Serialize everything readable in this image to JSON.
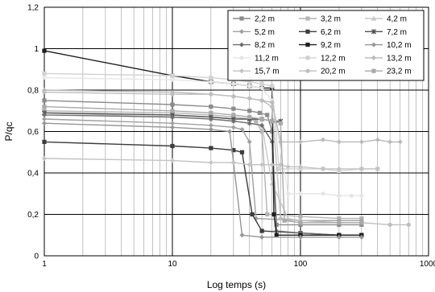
{
  "chart_data": {
    "type": "line",
    "xlabel": "Log temps (s)",
    "ylabel": "P/qc",
    "xscale": "log",
    "xlim": [
      1,
      1000
    ],
    "ylim": [
      0,
      1.2
    ],
    "x_ticks": [
      "1",
      "10",
      "100",
      "1000"
    ],
    "y_ticks": [
      "0",
      "0,2",
      "0,4",
      "0,6",
      "0,8",
      "1",
      "1,2"
    ],
    "y_tick_values": [
      0,
      0.2,
      0.4,
      0.6,
      0.8,
      1.0,
      1.2
    ],
    "grid": true,
    "legend_position": "top-right",
    "series": [
      {
        "name": "2,2 m",
        "color": "#8c8c8c",
        "marker": "square",
        "points": [
          [
            1,
            0.75
          ],
          [
            10,
            0.73
          ],
          [
            20,
            0.72
          ],
          [
            30,
            0.71
          ],
          [
            40,
            0.7
          ],
          [
            48,
            0.69
          ],
          [
            55,
            0.68
          ],
          [
            60,
            0.6
          ],
          [
            65,
            0.15
          ],
          [
            100,
            0.15
          ],
          [
            200,
            0.15
          ],
          [
            300,
            0.15
          ]
        ]
      },
      {
        "name": "3,2 m",
        "color": "#b4b4b4",
        "marker": "square",
        "points": [
          [
            1,
            0.7
          ],
          [
            10,
            0.69
          ],
          [
            20,
            0.68
          ],
          [
            30,
            0.67
          ],
          [
            40,
            0.66
          ],
          [
            45,
            0.65
          ],
          [
            50,
            0.6
          ],
          [
            55,
            0.2
          ],
          [
            100,
            0.19
          ],
          [
            200,
            0.18
          ],
          [
            300,
            0.18
          ]
        ]
      },
      {
        "name": "4,2 m",
        "color": "#c8c8c8",
        "marker": "triangle",
        "points": [
          [
            1,
            0.69
          ],
          [
            10,
            0.67
          ],
          [
            20,
            0.66
          ],
          [
            30,
            0.65
          ],
          [
            40,
            0.64
          ],
          [
            50,
            0.63
          ],
          [
            60,
            0.35
          ],
          [
            80,
            0.18
          ],
          [
            100,
            0.17
          ],
          [
            200,
            0.17
          ],
          [
            300,
            0.17
          ]
        ]
      },
      {
        "name": "5,2 m",
        "color": "#a0a0a0",
        "marker": "diamond",
        "points": [
          [
            1,
            0.66
          ],
          [
            10,
            0.64
          ],
          [
            20,
            0.63
          ],
          [
            30,
            0.62
          ],
          [
            35,
            0.61
          ],
          [
            40,
            0.55
          ],
          [
            45,
            0.18
          ],
          [
            100,
            0.17
          ],
          [
            200,
            0.17
          ],
          [
            300,
            0.17
          ]
        ]
      },
      {
        "name": "6,2 m",
        "color": "#3c3c3c",
        "marker": "square",
        "points": [
          [
            1,
            0.55
          ],
          [
            10,
            0.53
          ],
          [
            20,
            0.52
          ],
          [
            30,
            0.51
          ],
          [
            35,
            0.5
          ],
          [
            42,
            0.2
          ],
          [
            50,
            0.12
          ],
          [
            100,
            0.11
          ],
          [
            200,
            0.1
          ],
          [
            300,
            0.1
          ]
        ]
      },
      {
        "name": "7,2 m",
        "color": "#505050",
        "marker": "star",
        "points": [
          [
            1,
            0.69
          ],
          [
            10,
            0.68
          ],
          [
            20,
            0.67
          ],
          [
            30,
            0.66
          ],
          [
            40,
            0.66
          ],
          [
            50,
            0.66
          ],
          [
            60,
            0.65
          ],
          [
            70,
            0.65
          ]
        ]
      },
      {
        "name": "8,2 m",
        "color": "#6e6e6e",
        "marker": "diamond",
        "points": [
          [
            1,
            0.68
          ],
          [
            10,
            0.67
          ],
          [
            20,
            0.66
          ],
          [
            30,
            0.65
          ],
          [
            40,
            0.64
          ],
          [
            50,
            0.63
          ],
          [
            60,
            0.55
          ],
          [
            65,
            0.12
          ],
          [
            100,
            0.11
          ],
          [
            200,
            0.1
          ],
          [
            300,
            0.1
          ]
        ]
      },
      {
        "name": "9,2 m",
        "color": "#1e1e1e",
        "marker": "square",
        "points": [
          [
            1,
            0.99
          ],
          [
            10,
            0.87
          ],
          [
            20,
            0.84
          ],
          [
            30,
            0.83
          ],
          [
            40,
            0.82
          ],
          [
            50,
            0.81
          ],
          [
            60,
            0.81
          ],
          [
            62,
            0.2
          ],
          [
            65,
            0.1
          ],
          [
            100,
            0.1
          ],
          [
            200,
            0.1
          ],
          [
            300,
            0.1
          ]
        ]
      },
      {
        "name": "10,2 m",
        "color": "#969696",
        "marker": "diamond",
        "points": [
          [
            1,
            0.64
          ],
          [
            10,
            0.62
          ],
          [
            20,
            0.61
          ],
          [
            28,
            0.6
          ],
          [
            30,
            0.45
          ],
          [
            35,
            0.1
          ],
          [
            50,
            0.09
          ],
          [
            100,
            0.09
          ],
          [
            200,
            0.09
          ],
          [
            300,
            0.09
          ]
        ]
      },
      {
        "name": "11,2 m",
        "color": "#e6e6e6",
        "marker": "circle",
        "points": [
          [
            1,
            0.86
          ],
          [
            10,
            0.85
          ],
          [
            20,
            0.84
          ],
          [
            30,
            0.83
          ],
          [
            40,
            0.82
          ],
          [
            50,
            0.81
          ],
          [
            60,
            0.75
          ],
          [
            80,
            0.3
          ],
          [
            100,
            0.3
          ],
          [
            150,
            0.3
          ],
          [
            200,
            0.29
          ],
          [
            250,
            0.29
          ],
          [
            300,
            0.29
          ]
        ]
      },
      {
        "name": "12,2 m",
        "color": "#d2d2d2",
        "marker": "square",
        "points": [
          [
            1,
            0.88
          ],
          [
            10,
            0.87
          ],
          [
            20,
            0.86
          ],
          [
            30,
            0.85
          ],
          [
            40,
            0.84
          ],
          [
            50,
            0.83
          ],
          [
            60,
            0.82
          ],
          [
            68,
            0.42
          ],
          [
            100,
            0.42
          ],
          [
            150,
            0.42
          ],
          [
            200,
            0.41
          ],
          [
            300,
            0.42
          ],
          [
            400,
            0.42
          ]
        ]
      },
      {
        "name": "13,2 m",
        "color": "#b9b9b9",
        "marker": "diamond",
        "points": [
          [
            1,
            0.8
          ],
          [
            10,
            0.79
          ],
          [
            20,
            0.78
          ],
          [
            30,
            0.77
          ],
          [
            40,
            0.76
          ],
          [
            50,
            0.75
          ],
          [
            60,
            0.74
          ],
          [
            70,
            0.55
          ],
          [
            100,
            0.55
          ],
          [
            150,
            0.56
          ],
          [
            200,
            0.55
          ],
          [
            300,
            0.55
          ],
          [
            400,
            0.56
          ],
          [
            500,
            0.55
          ],
          [
            600,
            0.55
          ]
        ]
      },
      {
        "name": "15,7 m",
        "color": "#c3c3c3",
        "marker": "diamond",
        "points": [
          [
            1,
            0.47
          ],
          [
            10,
            0.46
          ],
          [
            20,
            0.45
          ],
          [
            30,
            0.45
          ],
          [
            40,
            0.44
          ],
          [
            50,
            0.44
          ],
          [
            60,
            0.44
          ],
          [
            70,
            0.44
          ],
          [
            80,
            0.43
          ],
          [
            100,
            0.43
          ],
          [
            150,
            0.42
          ],
          [
            200,
            0.42
          ],
          [
            300,
            0.42
          ],
          [
            400,
            0.42
          ]
        ]
      },
      {
        "name": "20,2 m",
        "color": "#bebebe",
        "marker": "circle",
        "points": [
          [
            1,
            0.79
          ],
          [
            10,
            0.78
          ],
          [
            20,
            0.78
          ],
          [
            30,
            0.77
          ],
          [
            40,
            0.76
          ],
          [
            50,
            0.75
          ],
          [
            60,
            0.72
          ],
          [
            70,
            0.18
          ],
          [
            100,
            0.17
          ],
          [
            200,
            0.16
          ],
          [
            300,
            0.16
          ],
          [
            500,
            0.15
          ],
          [
            700,
            0.15
          ]
        ]
      },
      {
        "name": "23,2 m",
        "color": "#aaaaaa",
        "marker": "square",
        "points": [
          [
            1,
            0.72
          ],
          [
            10,
            0.7
          ],
          [
            20,
            0.69
          ],
          [
            30,
            0.68
          ],
          [
            40,
            0.67
          ],
          [
            50,
            0.66
          ],
          [
            60,
            0.65
          ],
          [
            70,
            0.64
          ],
          [
            75,
            0.17
          ],
          [
            100,
            0.16
          ],
          [
            200,
            0.16
          ],
          [
            300,
            0.16
          ]
        ]
      }
    ]
  }
}
